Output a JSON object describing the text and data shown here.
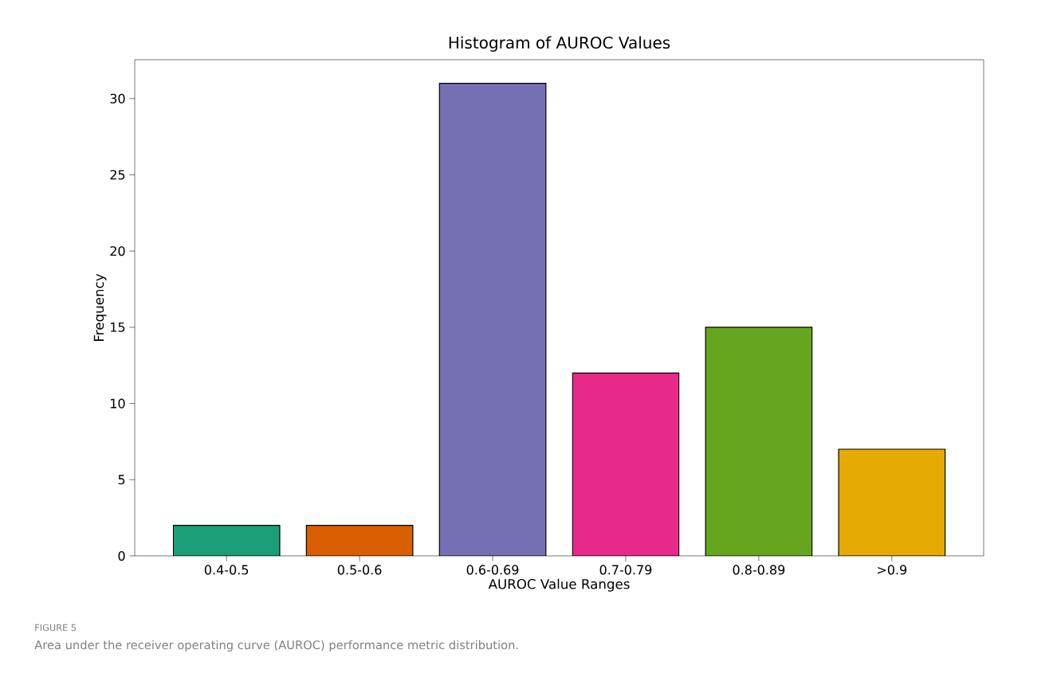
{
  "chart_data": {
    "type": "bar",
    "title": "Histogram of AUROC Values",
    "xlabel": "AUROC Value Ranges",
    "ylabel": "Frequency",
    "categories": [
      "0.4-0.5",
      "0.5-0.6",
      "0.6-0.69",
      "0.7-0.79",
      "0.8-0.89",
      ">0.9"
    ],
    "values": [
      2,
      2,
      31,
      12,
      15,
      7
    ],
    "colors": [
      "#1b9e77",
      "#d95f02",
      "#7570b3",
      "#e7298a",
      "#66a61e",
      "#e6ab02"
    ],
    "ylim": [
      0,
      32.55
    ],
    "yticks": [
      0,
      5,
      10,
      15,
      20,
      25,
      30
    ],
    "grid": false,
    "annotations": [
      "FIGURE 5",
      "Area under the receiver operating curve (AUROC) performance metric distribution."
    ]
  }
}
